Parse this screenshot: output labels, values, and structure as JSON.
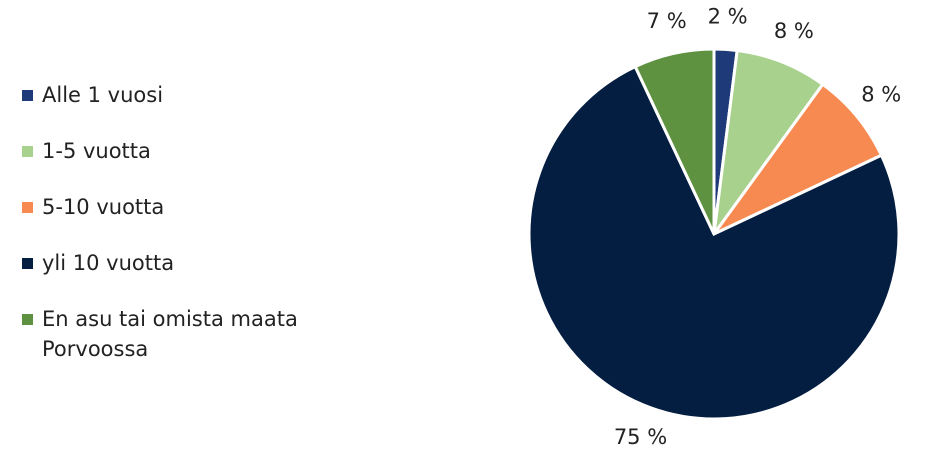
{
  "chart_data": {
    "type": "pie",
    "categories": [
      "Alle 1 vuosi",
      "1-5 vuotta",
      "5-10 vuotta",
      "yli 10 vuotta",
      "En asu tai omista maata Porvoossa"
    ],
    "values": [
      2,
      8,
      8,
      75,
      7
    ],
    "value_labels": [
      "2 %",
      "8 %",
      "8 %",
      "75 %",
      "7 %"
    ],
    "colors": [
      "#1f3a78",
      "#a9d18e",
      "#f68a50",
      "#041e42",
      "#5e9140"
    ],
    "legend": "left"
  }
}
